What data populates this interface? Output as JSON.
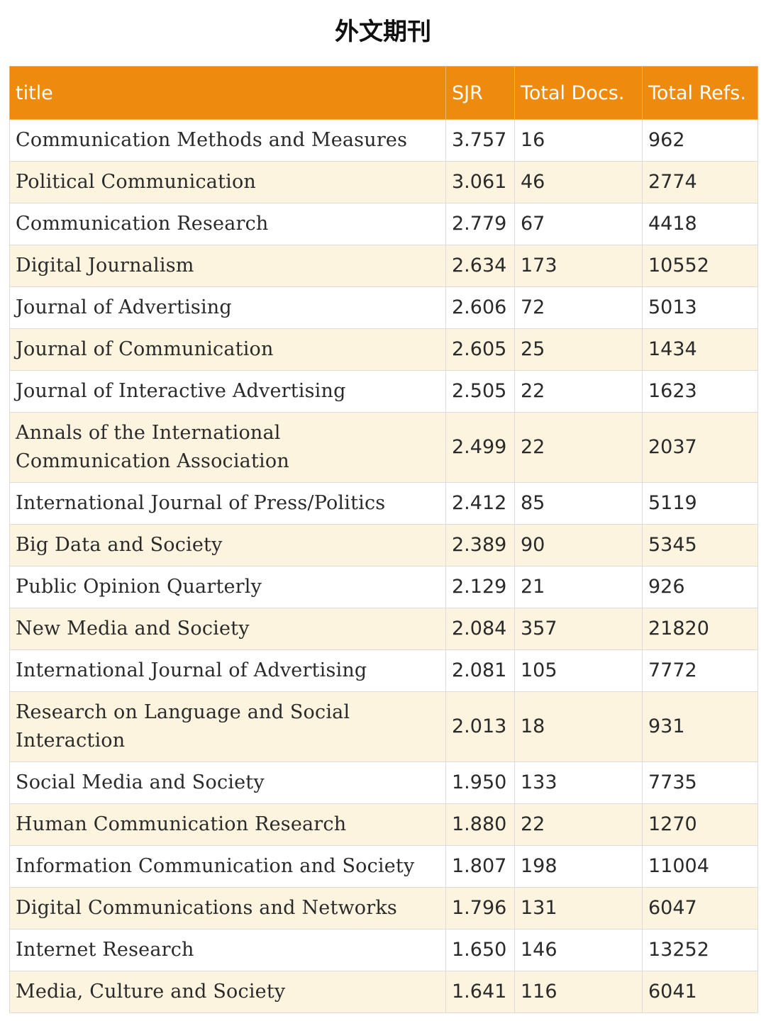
{
  "page": {
    "title": "外文期刊"
  },
  "table": {
    "headers": {
      "title": "title",
      "sjr": "SJR",
      "total_docs": "Total Docs.",
      "total_refs": "Total Refs."
    },
    "rows": [
      {
        "title": "Communication Methods and Measures",
        "sjr": "3.757",
        "total_docs": "16",
        "total_refs": "962"
      },
      {
        "title": "Political Communication",
        "sjr": "3.061",
        "total_docs": "46",
        "total_refs": "2774"
      },
      {
        "title": "Communication Research",
        "sjr": "2.779",
        "total_docs": "67",
        "total_refs": "4418"
      },
      {
        "title": "Digital Journalism",
        "sjr": "2.634",
        "total_docs": "173",
        "total_refs": "10552"
      },
      {
        "title": "Journal of Advertising",
        "sjr": "2.606",
        "total_docs": "72",
        "total_refs": "5013"
      },
      {
        "title": "Journal of Communication",
        "sjr": "2.605",
        "total_docs": "25",
        "total_refs": "1434"
      },
      {
        "title": "Journal of Interactive Advertising",
        "sjr": "2.505",
        "total_docs": "22",
        "total_refs": "1623"
      },
      {
        "title": "Annals of the International Communication Association",
        "sjr": "2.499",
        "total_docs": "22",
        "total_refs": "2037"
      },
      {
        "title": "International Journal of Press/Politics",
        "sjr": "2.412",
        "total_docs": "85",
        "total_refs": "5119"
      },
      {
        "title": "Big Data and Society",
        "sjr": "2.389",
        "total_docs": "90",
        "total_refs": "5345"
      },
      {
        "title": "Public Opinion Quarterly",
        "sjr": "2.129",
        "total_docs": "21",
        "total_refs": "926"
      },
      {
        "title": "New Media and Society",
        "sjr": "2.084",
        "total_docs": "357",
        "total_refs": "21820"
      },
      {
        "title": "International Journal of Advertising",
        "sjr": "2.081",
        "total_docs": "105",
        "total_refs": "7772"
      },
      {
        "title": "Research on Language and Social Interaction",
        "sjr": "2.013",
        "total_docs": "18",
        "total_refs": "931"
      },
      {
        "title": "Social Media and Society",
        "sjr": "1.950",
        "total_docs": "133",
        "total_refs": "7735"
      },
      {
        "title": "Human Communication Research",
        "sjr": "1.880",
        "total_docs": "22",
        "total_refs": "1270"
      },
      {
        "title": "Information Communication and Society",
        "sjr": "1.807",
        "total_docs": "198",
        "total_refs": "11004"
      },
      {
        "title": "Digital Communications and Networks",
        "sjr": "1.796",
        "total_docs": "131",
        "total_refs": "6047"
      },
      {
        "title": "Internet Research",
        "sjr": "1.650",
        "total_docs": "146",
        "total_refs": "13252"
      },
      {
        "title": "Media, Culture and Society",
        "sjr": "1.641",
        "total_docs": "116",
        "total_refs": "6041"
      }
    ]
  },
  "colors": {
    "header_bg": "#ee8a0e",
    "stripe_bg": "#fdf4e0"
  }
}
